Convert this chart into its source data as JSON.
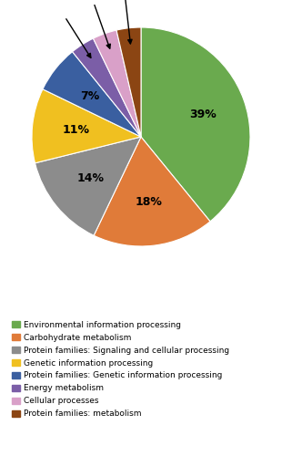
{
  "labels": [
    "Environmental information processing",
    "Carbohydrate metabolism",
    "Protein families: Signaling and cellular processing",
    "Genetic information processing",
    "Protein families: Genetic information processing",
    "Energy metabolism",
    "Cellular processes",
    "Protein families: metabolism"
  ],
  "values": [
    39,
    18,
    14,
    11,
    7,
    3.6,
    3.6,
    3.6
  ],
  "colors": [
    "#6aaa4e",
    "#e07b39",
    "#8c8c8c",
    "#f0c020",
    "#3a5fa0",
    "#7b5ea7",
    "#d9a0c8",
    "#8b4513"
  ],
  "pct_labels": [
    "39%",
    "18%",
    "14%",
    "11%",
    "7%",
    "",
    "",
    ""
  ],
  "figsize": [
    3.1,
    5.0
  ],
  "dpi": 100
}
